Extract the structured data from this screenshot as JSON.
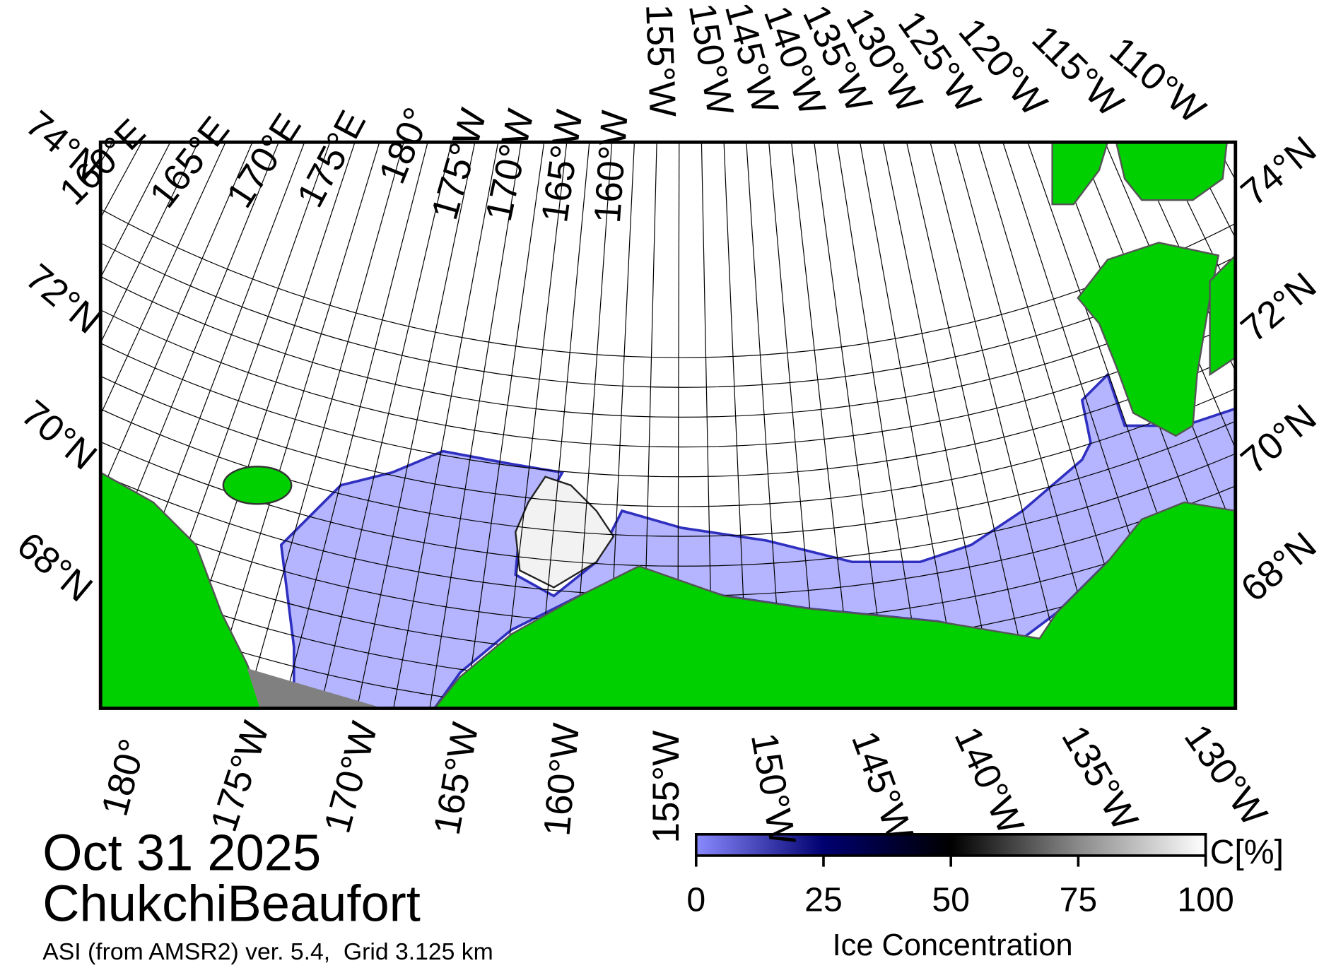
{
  "title": {
    "date": "Oct 31 2025",
    "region": "ChukchiBeaufort",
    "product": "ASI (from AMSR2) ver. 5.4,  Grid 3.125 km"
  },
  "map": {
    "top_longitude_labels": [
      "160°E",
      "165°E",
      "170°E",
      "175°E",
      "180°",
      "175°W",
      "170°W",
      "165°W",
      "160°W",
      "155°W",
      "150°W",
      "145°W",
      "140°W",
      "135°W",
      "130°W",
      "125°W",
      "120°W",
      "115°W",
      "110°W"
    ],
    "bottom_longitude_labels": [
      "180°",
      "175°W",
      "170°W",
      "165°W",
      "160°W",
      "155°W",
      "150°W",
      "145°W",
      "140°W",
      "135°W",
      "130°W"
    ],
    "left_latitude_labels": [
      "74°N",
      "72°N",
      "70°N",
      "68°N"
    ],
    "right_latitude_labels": [
      "74°N",
      "72°N",
      "70°N",
      "68°N"
    ]
  },
  "colorbar": {
    "label": "Ice Concentration",
    "unit": "C[%]",
    "ticks": [
      0,
      25,
      50,
      75,
      100
    ]
  }
}
